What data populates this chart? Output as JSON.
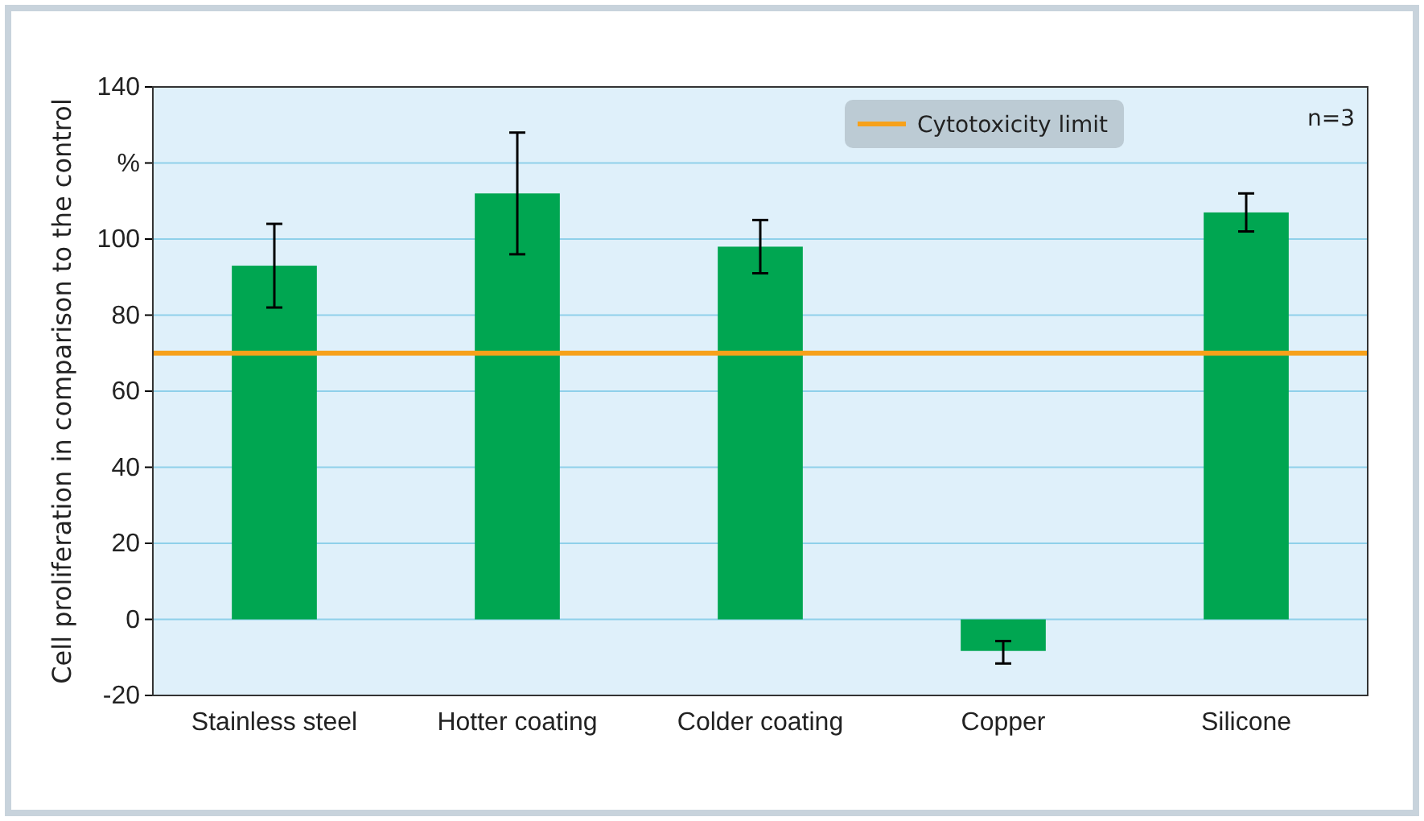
{
  "chart_data": {
    "type": "bar",
    "ylabel": "Cell proliferation in comparison to the control",
    "categories": [
      "Stainless steel",
      "Hotter coating",
      "Colder coating",
      "Copper",
      "Silicone"
    ],
    "values": [
      93,
      112,
      98,
      -8.3,
      107
    ],
    "errors": [
      [
        82,
        104
      ],
      [
        96,
        128
      ],
      [
        91,
        105
      ],
      [
        -11.6,
        -5.7
      ],
      [
        102,
        112
      ]
    ],
    "color": "#00a651",
    "ylim": [
      -20,
      140
    ],
    "yticks": [
      -20,
      0,
      20,
      40,
      60,
      80,
      100,
      {
        "value": 120,
        "label": "%"
      },
      140
    ],
    "grid": "y",
    "ref_lines": [
      {
        "axis": "y",
        "value": 70,
        "label": "Cytotoxicity limit",
        "color": "#f7a11a"
      }
    ],
    "legend": "top right",
    "annotations": [
      "n=3"
    ]
  }
}
